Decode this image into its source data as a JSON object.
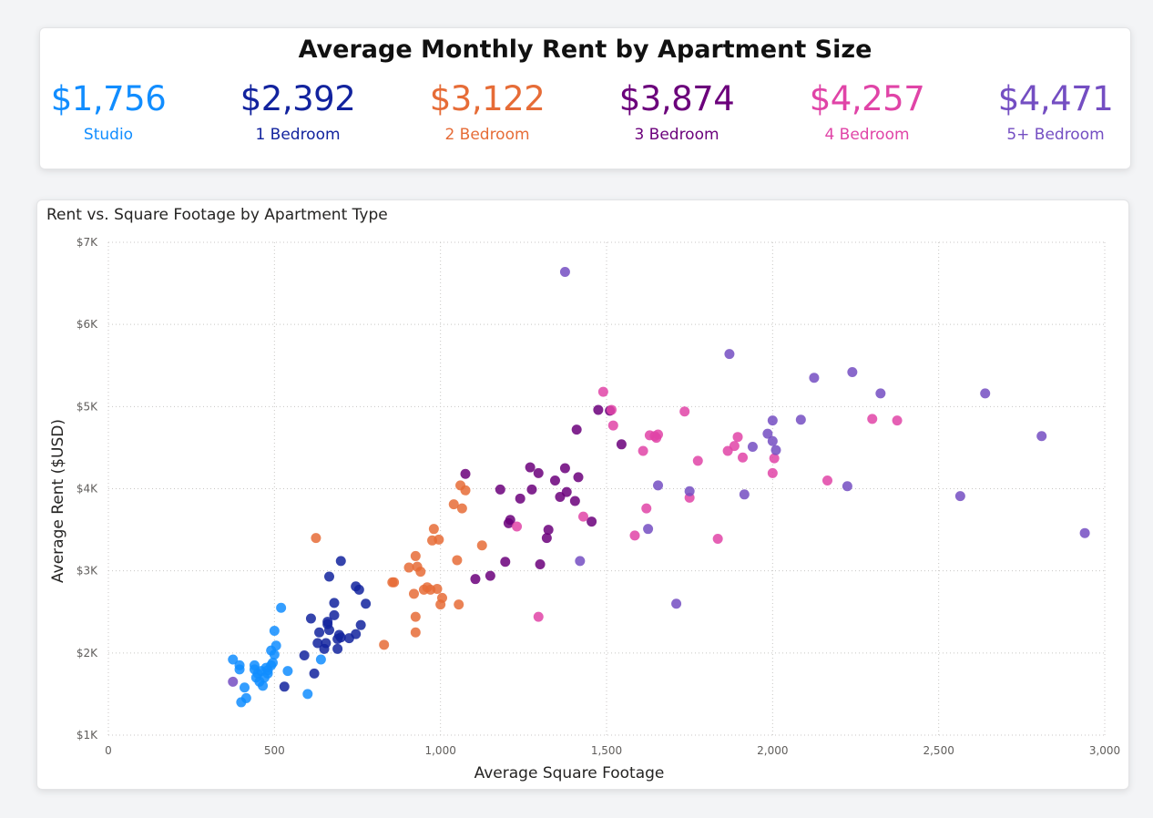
{
  "header": {
    "title": "Average Monthly Rent by Apartment Size",
    "kpis": [
      {
        "value": "$1,756",
        "label": "Studio",
        "color": "#118DFF"
      },
      {
        "value": "$2,392",
        "label": "1 Bedroom",
        "color": "#12239E"
      },
      {
        "value": "$3,122",
        "label": "2 Bedroom",
        "color": "#E66C37"
      },
      {
        "value": "$3,874",
        "label": "3 Bedroom",
        "color": "#6B007B"
      },
      {
        "value": "$4,257",
        "label": "4 Bedroom",
        "color": "#E044A7"
      },
      {
        "value": "$4,471",
        "label": "5+ Bedroom",
        "color": "#744EC2"
      }
    ]
  },
  "chart_data": {
    "type": "scatter",
    "title": "Rent vs. Square Footage by Apartment Type",
    "xlabel": "Average Square Footage",
    "ylabel": "Average Rent ($USD)",
    "xlim": [
      0,
      3000
    ],
    "ylim": [
      1000,
      7000
    ],
    "x_ticks": [
      0,
      500,
      1000,
      1500,
      2000,
      2500,
      3000
    ],
    "x_tick_labels": [
      "0",
      "500",
      "1,000",
      "1,500",
      "2,000",
      "2,500",
      "3,000"
    ],
    "y_ticks": [
      1000,
      2000,
      3000,
      4000,
      5000,
      6000,
      7000
    ],
    "y_tick_labels": [
      "$1K",
      "$2K",
      "$3K",
      "$4K",
      "$5K",
      "$6K",
      "$7K"
    ],
    "grid": true,
    "legend": "none",
    "series": [
      {
        "color": "#118DFF",
        "points": [
          [
            375,
            1920
          ],
          [
            395,
            1800
          ],
          [
            395,
            1850
          ],
          [
            400,
            1400
          ],
          [
            410,
            1580
          ],
          [
            415,
            1450
          ],
          [
            440,
            1850
          ],
          [
            440,
            1800
          ],
          [
            445,
            1700
          ],
          [
            450,
            1750
          ],
          [
            455,
            1650
          ],
          [
            460,
            1780
          ],
          [
            465,
            1600
          ],
          [
            470,
            1700
          ],
          [
            475,
            1820
          ],
          [
            480,
            1750
          ],
          [
            480,
            1790
          ],
          [
            490,
            1850
          ],
          [
            490,
            2030
          ],
          [
            495,
            1880
          ],
          [
            500,
            1980
          ],
          [
            500,
            2270
          ],
          [
            505,
            2090
          ],
          [
            520,
            2550
          ],
          [
            540,
            1780
          ],
          [
            600,
            1500
          ],
          [
            640,
            1920
          ]
        ]
      },
      {
        "color": "#12239E",
        "points": [
          [
            530,
            1590
          ],
          [
            590,
            1970
          ],
          [
            610,
            2420
          ],
          [
            620,
            1750
          ],
          [
            630,
            2120
          ],
          [
            635,
            2250
          ],
          [
            650,
            2050
          ],
          [
            655,
            2120
          ],
          [
            660,
            2380
          ],
          [
            660,
            2350
          ],
          [
            665,
            2280
          ],
          [
            665,
            2930
          ],
          [
            680,
            2460
          ],
          [
            680,
            2610
          ],
          [
            690,
            2050
          ],
          [
            690,
            2170
          ],
          [
            695,
            2220
          ],
          [
            700,
            3120
          ],
          [
            700,
            2190
          ],
          [
            725,
            2180
          ],
          [
            745,
            2230
          ],
          [
            745,
            2810
          ],
          [
            755,
            2770
          ],
          [
            760,
            2340
          ],
          [
            775,
            2600
          ]
        ]
      },
      {
        "color": "#E66C37",
        "points": [
          [
            625,
            3400
          ],
          [
            830,
            2100
          ],
          [
            855,
            2860
          ],
          [
            860,
            2860
          ],
          [
            905,
            3040
          ],
          [
            920,
            2720
          ],
          [
            925,
            3180
          ],
          [
            925,
            2250
          ],
          [
            925,
            2440
          ],
          [
            930,
            3050
          ],
          [
            940,
            2990
          ],
          [
            950,
            2770
          ],
          [
            960,
            2800
          ],
          [
            970,
            2770
          ],
          [
            975,
            3370
          ],
          [
            980,
            3510
          ],
          [
            990,
            2780
          ],
          [
            995,
            3380
          ],
          [
            1000,
            2590
          ],
          [
            1005,
            2670
          ],
          [
            1040,
            3810
          ],
          [
            1050,
            3130
          ],
          [
            1055,
            2590
          ],
          [
            1060,
            4040
          ],
          [
            1065,
            3760
          ],
          [
            1075,
            3980
          ],
          [
            1125,
            3310
          ]
        ]
      },
      {
        "color": "#6B007B",
        "points": [
          [
            1105,
            2900
          ],
          [
            1150,
            2940
          ],
          [
            1180,
            3990
          ],
          [
            1195,
            3110
          ],
          [
            1205,
            3580
          ],
          [
            1210,
            3620
          ],
          [
            1240,
            3880
          ],
          [
            1270,
            4260
          ],
          [
            1275,
            3990
          ],
          [
            1295,
            4190
          ],
          [
            1300,
            3080
          ],
          [
            1320,
            3400
          ],
          [
            1325,
            3500
          ],
          [
            1345,
            4100
          ],
          [
            1360,
            3900
          ],
          [
            1375,
            4250
          ],
          [
            1380,
            3960
          ],
          [
            1405,
            3850
          ],
          [
            1410,
            4720
          ],
          [
            1415,
            4140
          ],
          [
            1455,
            3600
          ],
          [
            1475,
            4960
          ],
          [
            1510,
            4950
          ],
          [
            1545,
            4540
          ],
          [
            1075,
            4180
          ]
        ]
      },
      {
        "color": "#E044A7",
        "points": [
          [
            1230,
            3540
          ],
          [
            1295,
            2440
          ],
          [
            1430,
            3660
          ],
          [
            1490,
            5180
          ],
          [
            1515,
            4960
          ],
          [
            1520,
            4770
          ],
          [
            1585,
            3430
          ],
          [
            1610,
            4460
          ],
          [
            1620,
            3760
          ],
          [
            1630,
            4650
          ],
          [
            1645,
            4640
          ],
          [
            1650,
            4620
          ],
          [
            1655,
            4660
          ],
          [
            1735,
            4940
          ],
          [
            1750,
            3890
          ],
          [
            1775,
            4340
          ],
          [
            1835,
            3390
          ],
          [
            1865,
            4460
          ],
          [
            1885,
            4520
          ],
          [
            1895,
            4630
          ],
          [
            1910,
            4380
          ],
          [
            2000,
            4190
          ],
          [
            2005,
            4370
          ],
          [
            2165,
            4100
          ],
          [
            2300,
            4850
          ],
          [
            2375,
            4830
          ]
        ]
      },
      {
        "color": "#744EC2",
        "points": [
          [
            375,
            1650
          ],
          [
            1375,
            6640
          ],
          [
            1420,
            3120
          ],
          [
            1625,
            3510
          ],
          [
            1655,
            4040
          ],
          [
            1710,
            2600
          ],
          [
            1750,
            3970
          ],
          [
            1870,
            5640
          ],
          [
            1915,
            3930
          ],
          [
            1940,
            4510
          ],
          [
            1985,
            4670
          ],
          [
            2000,
            4830
          ],
          [
            2000,
            4580
          ],
          [
            2010,
            4470
          ],
          [
            2085,
            4840
          ],
          [
            2125,
            5350
          ],
          [
            2225,
            4030
          ],
          [
            2240,
            5420
          ],
          [
            2325,
            5160
          ],
          [
            2565,
            3910
          ],
          [
            2640,
            5160
          ],
          [
            2810,
            4640
          ],
          [
            2940,
            3460
          ]
        ]
      }
    ]
  }
}
